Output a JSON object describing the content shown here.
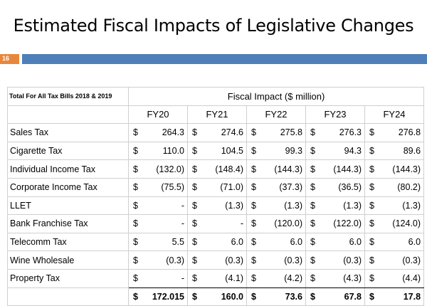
{
  "slide": {
    "title": "Estimated Fiscal Impacts of Legislative Changes",
    "page_number": "16"
  },
  "table": {
    "corner_label": "Total For All Tax Bills 2018 & 2019",
    "group_header": "Fiscal Impact ($ million)",
    "years": [
      "FY20",
      "FY21",
      "FY22",
      "FY23",
      "FY24"
    ],
    "currency_symbol": "$",
    "rows": [
      {
        "label": "Sales Tax",
        "values": [
          "264.3",
          "274.6",
          "275.8",
          "276.3",
          "276.8"
        ]
      },
      {
        "label": "Cigarette Tax",
        "values": [
          "110.0",
          "104.5",
          "99.3",
          "94.3",
          "89.6"
        ]
      },
      {
        "label": "Individual Income Tax",
        "values": [
          "(132.0)",
          "(148.4)",
          "(144.3)",
          "(144.3)",
          "(144.3)"
        ]
      },
      {
        "label": "Corporate Income Tax",
        "values": [
          "(75.5)",
          "(71.0)",
          "(37.3)",
          "(36.5)",
          "(80.2)"
        ]
      },
      {
        "label": "LLET",
        "values": [
          "-",
          "(1.3)",
          "(1.3)",
          "(1.3)",
          "(1.3)"
        ]
      },
      {
        "label": "Bank Franchise Tax",
        "values": [
          "-",
          "-",
          "(120.0)",
          "(122.0)",
          "(124.0)"
        ]
      },
      {
        "label": "Telecomm Tax",
        "values": [
          "5.5",
          "6.0",
          "6.0",
          "6.0",
          "6.0"
        ]
      },
      {
        "label": "Wine Wholesale",
        "values": [
          "(0.3)",
          "(0.3)",
          "(0.3)",
          "(0.3)",
          "(0.3)"
        ]
      },
      {
        "label": "Property Tax",
        "values": [
          "-",
          "(4.1)",
          "(4.2)",
          "(4.3)",
          "(4.4)"
        ]
      }
    ],
    "total": {
      "label": "",
      "values": [
        "172.015",
        "160.0",
        "73.6",
        "67.8",
        "17.8"
      ]
    }
  }
}
